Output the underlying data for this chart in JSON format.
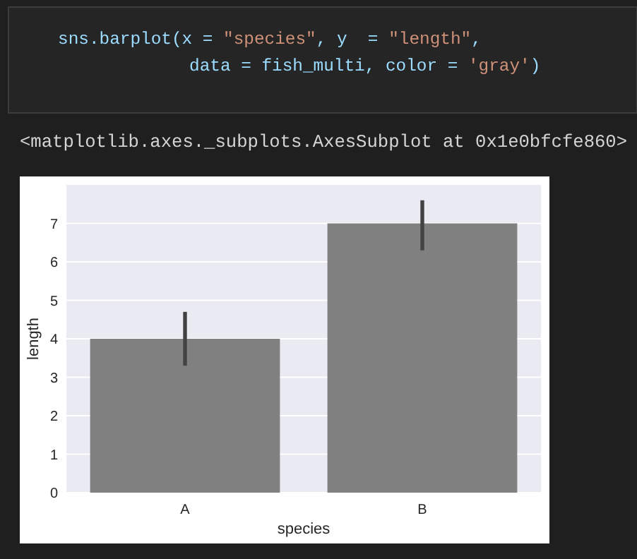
{
  "chart_data": {
    "type": "bar",
    "xlabel": "species",
    "ylabel": "length",
    "categories": [
      "A",
      "B"
    ],
    "values": [
      4,
      7
    ],
    "color": "#808080",
    "errors": [
      [
        3.3,
        4.7
      ],
      [
        6.3,
        7.6
      ]
    ],
    "ylim": [
      0,
      8
    ],
    "yticks": [
      0,
      1,
      2,
      3,
      4,
      5,
      6,
      7
    ],
    "grid": "y",
    "annotations": [
      "sns.barplot(x = \"species\", y  = \"length\",",
      "data = fish_multi, color = 'gray')",
      "<matplotlib.axes._subplots.AxesSubplot at 0x1e0bfcfe860>"
    ]
  }
}
